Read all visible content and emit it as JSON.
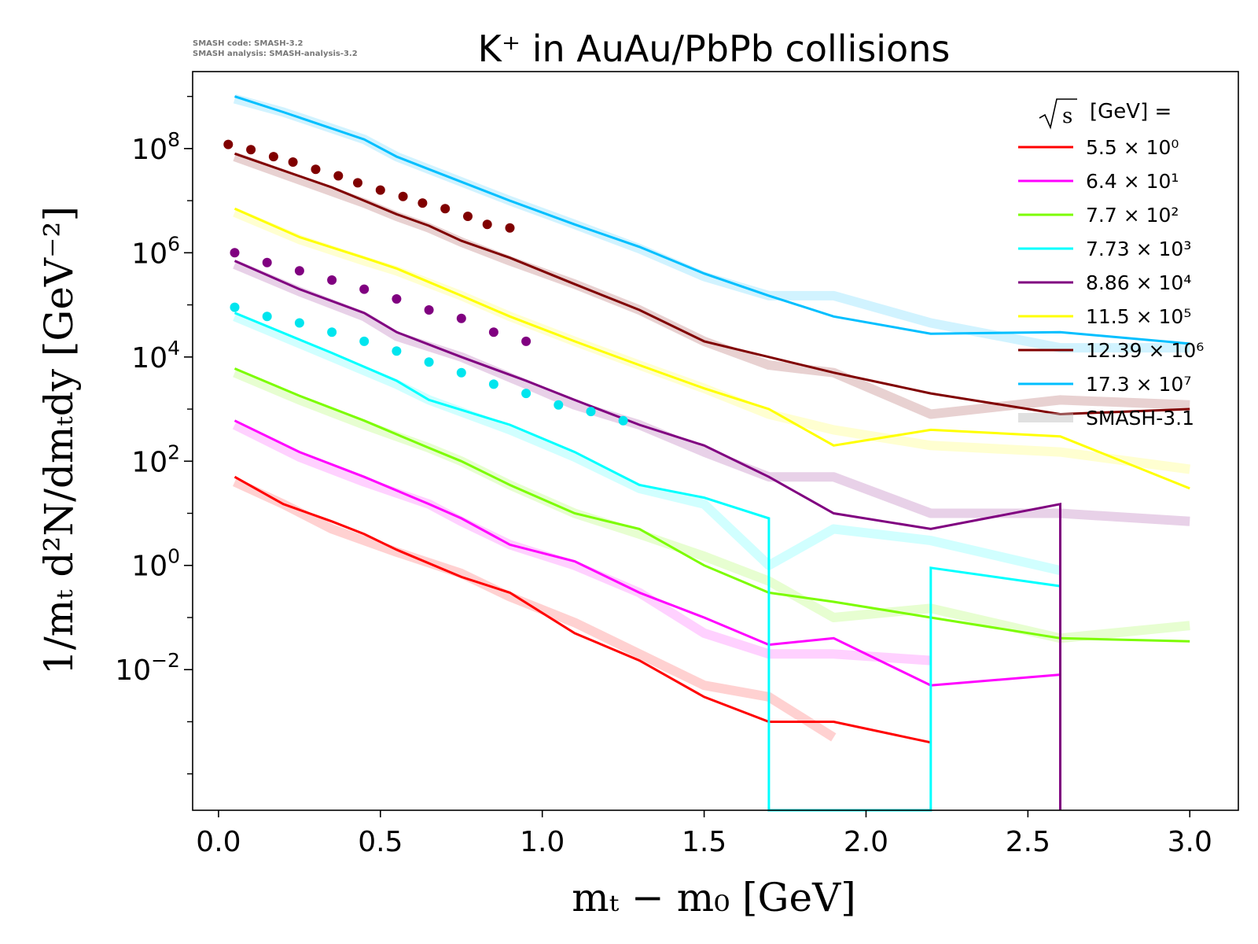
{
  "chart_data": {
    "type": "line",
    "title": "K⁺ in AuAu/PbPb collisions",
    "version_note": [
      "SMASH code:      SMASH-3.2",
      "SMASH analysis: SMASH-analysis-3.2"
    ],
    "xlabel": "mₜ − m₀ [GeV]",
    "ylabel": "1/mₜ d²N/dmₜdy [GeV⁻²]",
    "x_scale": "linear",
    "y_scale": "log",
    "xlim": [
      -0.08,
      3.15
    ],
    "ylim": [
      2e-05,
      3000000000
    ],
    "x_ticks": [
      0.0,
      0.5,
      1.0,
      1.5,
      2.0,
      2.5,
      3.0
    ],
    "x_tick_labels": [
      "0.0",
      "0.5",
      "1.0",
      "1.5",
      "2.0",
      "2.5",
      "3.0"
    ],
    "y_ticks": [
      0.01,
      1,
      100,
      10000,
      1000000,
      100000000
    ],
    "y_tick_labels": [
      {
        "base": "10",
        "exp": "−2"
      },
      {
        "base": "10",
        "exp": "0"
      },
      {
        "base": "10",
        "exp": "2"
      },
      {
        "base": "10",
        "exp": "4"
      },
      {
        "base": "10",
        "exp": "6"
      },
      {
        "base": "10",
        "exp": "8"
      }
    ],
    "grid": false,
    "legend_position": "top-right",
    "legend_title": "[GeV] =",
    "legend_reference_label": "SMASH-3.1",
    "series": [
      {
        "name": "5.5 × 10⁰",
        "color": "#ff0000",
        "x": [
          0.05,
          0.2,
          0.35,
          0.45,
          0.55,
          0.75,
          0.9,
          1.1,
          1.3,
          1.5,
          1.7,
          1.9,
          2.2
        ],
        "y": [
          50,
          15,
          7,
          4,
          2,
          0.6,
          0.3,
          0.05,
          0.015,
          0.003,
          0.001,
          0.001,
          0.0004
        ],
        "ref_y": [
          40,
          15,
          5,
          3,
          1.8,
          0.7,
          0.25,
          0.08,
          0.02,
          0.005,
          0.003,
          0.0005,
          null
        ]
      },
      {
        "name": "6.4 × 10¹",
        "color": "#ff00ff",
        "x": [
          0.05,
          0.25,
          0.45,
          0.65,
          0.75,
          0.9,
          1.1,
          1.3,
          1.5,
          1.7,
          1.9,
          2.2,
          2.6
        ],
        "y": [
          600,
          150,
          50,
          15,
          8,
          2.5,
          1.2,
          0.3,
          0.1,
          0.03,
          0.04,
          0.005,
          0.008
        ],
        "ref_y": [
          500,
          120,
          40,
          15,
          7,
          2.5,
          1,
          0.3,
          0.05,
          0.02,
          0.02,
          0.015,
          null
        ]
      },
      {
        "name": "7.7 × 10²",
        "color": "#7cfc00",
        "x": [
          0.05,
          0.25,
          0.45,
          0.65,
          0.75,
          0.9,
          1.1,
          1.3,
          1.5,
          1.7,
          1.9,
          2.2,
          2.6,
          3.0
        ],
        "y": [
          6000,
          1800,
          600,
          180,
          100,
          35,
          10,
          5,
          1,
          0.3,
          0.2,
          0.1,
          0.04,
          0.035
        ],
        "ref_y": [
          5000,
          1500,
          500,
          180,
          100,
          35,
          10,
          4,
          1.5,
          0.5,
          0.1,
          0.15,
          0.04,
          0.07
        ]
      },
      {
        "name": "7.73 × 10³",
        "color": "#00ffff",
        "x": [
          0.05,
          0.35,
          0.55,
          0.65,
          0.9,
          1.1,
          1.3,
          1.5,
          1.7,
          1.7,
          2.2,
          2.2,
          2.6,
          2.6
        ],
        "y": [
          70000,
          12000,
          3500,
          1500,
          500,
          150,
          35,
          20,
          8,
          2e-05,
          2e-05,
          0.9,
          0.4,
          2e-05
        ],
        "ref_y": [
          60000,
          10000,
          3000,
          1500,
          400,
          120,
          30,
          15,
          1,
          5,
          3,
          0.8
        ],
        "ref_x": [
          0.05,
          0.35,
          0.55,
          0.65,
          0.9,
          1.1,
          1.3,
          1.5,
          1.7,
          1.9,
          2.2,
          2.6
        ]
      },
      {
        "name": "8.86 × 10⁴",
        "color": "#800080",
        "x": [
          0.05,
          0.25,
          0.45,
          0.55,
          0.75,
          0.95,
          1.1,
          1.3,
          1.5,
          1.7,
          1.9,
          2.2,
          2.6,
          2.6
        ],
        "y": [
          700000,
          200000,
          70000,
          30000,
          10000,
          3500,
          1500,
          500,
          200,
          50,
          10,
          5,
          15,
          2e-05
        ],
        "ref_y": [
          600000,
          180000,
          60000,
          25000,
          10000,
          3000,
          1200,
          500,
          150,
          50,
          50,
          10,
          10,
          7
        ],
        "ref_x": [
          0.05,
          0.25,
          0.45,
          0.55,
          0.75,
          0.95,
          1.1,
          1.3,
          1.5,
          1.7,
          1.9,
          2.2,
          2.6,
          3.0
        ]
      },
      {
        "name": "11.5 × 10⁵",
        "color": "#ffff00",
        "x": [
          0.05,
          0.25,
          0.45,
          0.55,
          0.75,
          0.9,
          1.1,
          1.3,
          1.5,
          1.7,
          1.9,
          2.2,
          2.6,
          3.0
        ],
        "y": [
          7000000,
          2000000,
          800000,
          500000,
          150000,
          60000,
          20000,
          7000,
          2500,
          1000,
          200,
          400,
          300,
          30
        ],
        "ref_y": [
          6000000,
          1800000,
          700000,
          450000,
          150000,
          60000,
          20000,
          7000,
          2500,
          800,
          400,
          200,
          150,
          70
        ]
      },
      {
        "name": "12.39 × 10⁶",
        "color": "#800000",
        "x": [
          0.05,
          0.35,
          0.45,
          0.55,
          0.65,
          0.75,
          0.9,
          1.1,
          1.3,
          1.5,
          1.7,
          1.9,
          2.2,
          2.6,
          3.0
        ],
        "y": [
          80000000,
          18000000,
          10000000,
          5500000,
          3300000,
          1700000,
          800000,
          250000,
          80000,
          20000,
          10000,
          5000,
          2000,
          800,
          1000
        ],
        "ref_y": [
          70000000,
          15000000,
          9000000,
          5000000,
          3000000,
          1600000,
          700000,
          250000,
          80000,
          20000,
          7000,
          5000,
          800,
          1500,
          1200
        ]
      },
      {
        "name": "17.3 × 10⁷",
        "color": "#00bfff",
        "x": [
          0.05,
          0.2,
          0.45,
          0.55,
          0.65,
          0.9,
          1.1,
          1.3,
          1.5,
          1.7,
          1.9,
          2.2,
          2.6,
          3.0
        ],
        "y": [
          1000000000,
          500000000,
          150000000,
          70000000,
          40000000,
          10000000,
          3500000,
          1300000,
          400000,
          150000,
          60000,
          28000,
          30000,
          18000
        ],
        "ref_y": [
          900000000,
          500000000,
          150000000,
          70000000,
          40000000,
          10000000,
          3500000,
          1200000,
          350000,
          150000,
          150000,
          45000,
          15000,
          15000
        ]
      }
    ],
    "data_points": [
      {
        "name": "12.39 × 10⁶",
        "color": "#800000",
        "x": [
          0.03,
          0.1,
          0.17,
          0.23,
          0.3,
          0.37,
          0.43,
          0.5,
          0.57,
          0.63,
          0.7,
          0.77,
          0.83,
          0.9
        ],
        "y": [
          120000000,
          95000000,
          70000000,
          55000000,
          40000000,
          30000000,
          22000000,
          16000000,
          12000000,
          9000000,
          7000000,
          5000000,
          3500000,
          3000000
        ]
      },
      {
        "name": "8.86 × 10⁴",
        "color": "#800080",
        "x": [
          0.05,
          0.15,
          0.25,
          0.35,
          0.45,
          0.55,
          0.65,
          0.75,
          0.85,
          0.95
        ],
        "y": [
          1000000,
          650000,
          450000,
          300000,
          200000,
          130000,
          80000,
          55000,
          30000,
          20000
        ]
      },
      {
        "name": "7.73 × 10³",
        "color": "#00e5ee",
        "x": [
          0.05,
          0.15,
          0.25,
          0.35,
          0.45,
          0.55,
          0.65,
          0.75,
          0.85,
          0.95,
          1.05,
          1.15,
          1.25
        ],
        "y": [
          90000,
          60000,
          45000,
          30000,
          20000,
          13000,
          8000,
          5000,
          3000,
          2000,
          1200,
          900,
          600
        ]
      }
    ]
  }
}
